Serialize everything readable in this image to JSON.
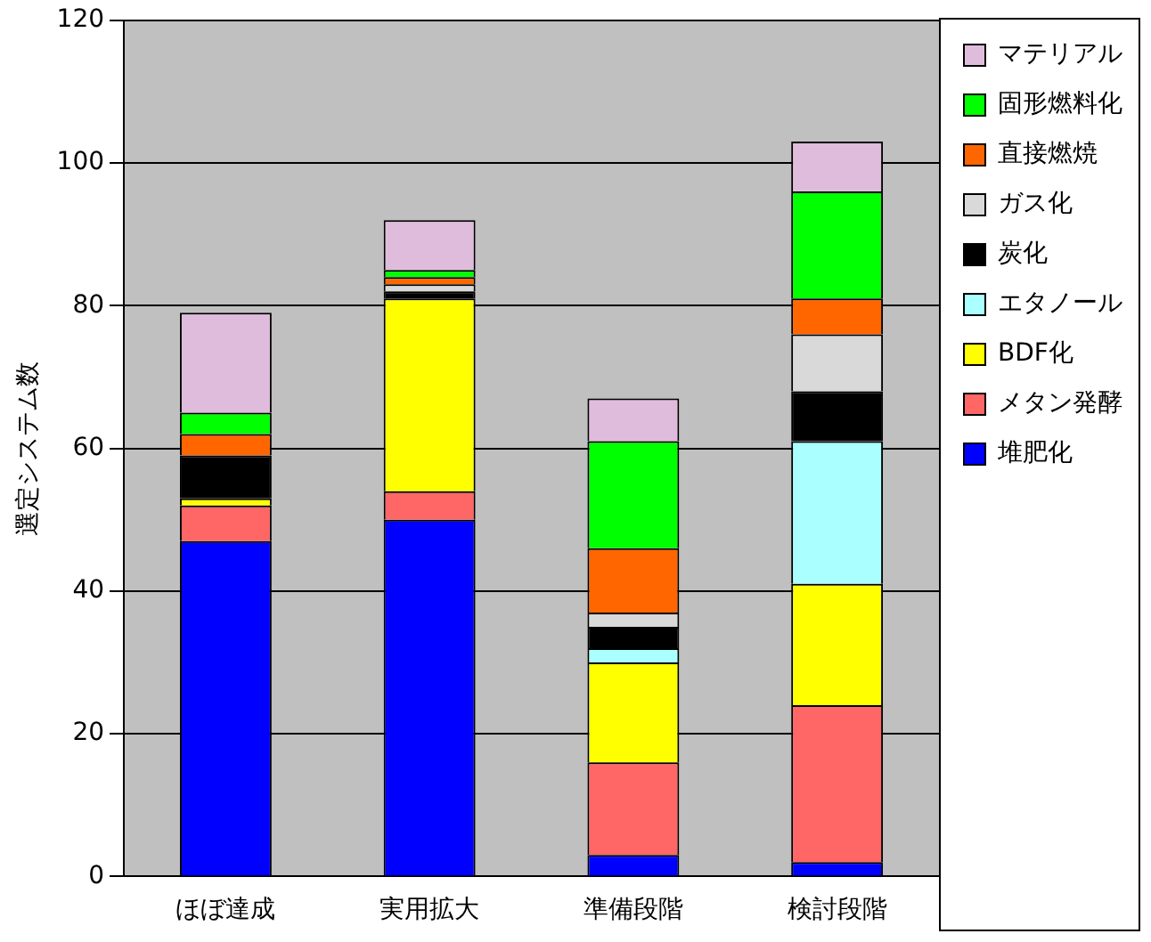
{
  "chart_data": {
    "type": "bar",
    "stacked": true,
    "ylabel": "選定システム数",
    "categories": [
      "ほぼ達成",
      "実用拡大",
      "準備段階",
      "検討段階"
    ],
    "series": [
      {
        "name": "堆肥化",
        "color": "#0000ff",
        "values": [
          47,
          50,
          3,
          2
        ]
      },
      {
        "name": "メタン発酵",
        "color": "#ff6666",
        "values": [
          5,
          4,
          13,
          22
        ]
      },
      {
        "name": "BDF化",
        "color": "#ffff00",
        "values": [
          1,
          27,
          14,
          17
        ]
      },
      {
        "name": "エタノール",
        "color": "#aaffff",
        "values": [
          0,
          0,
          2,
          20
        ]
      },
      {
        "name": "炭化",
        "color": "#000000",
        "values": [
          6,
          1,
          3,
          7
        ]
      },
      {
        "name": "ガス化",
        "color": "#d9d9d9",
        "values": [
          0,
          1,
          2,
          8
        ]
      },
      {
        "name": "直接燃焼",
        "color": "#ff6600",
        "values": [
          3,
          1,
          9,
          5
        ]
      },
      {
        "name": "固形燃料化",
        "color": "#00ff00",
        "values": [
          3,
          1,
          15,
          15
        ]
      },
      {
        "name": "マテリアル",
        "color": "#e0bcdc",
        "values": [
          14,
          7,
          6,
          7
        ]
      }
    ],
    "ylim": [
      0,
      120
    ],
    "yticks": [
      0,
      20,
      40,
      60,
      80,
      100,
      120
    ],
    "grid": "y",
    "legend": "right"
  }
}
